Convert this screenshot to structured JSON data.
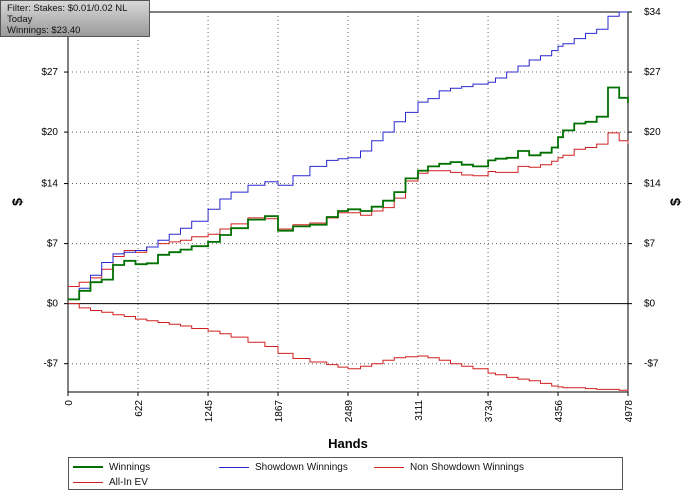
{
  "filter_box": {
    "line1": "Filter: Stakes: $0.01/0.02 NL",
    "line2": "Today",
    "line3": "Winnings: $23.40"
  },
  "chart_data": {
    "type": "line",
    "title": "",
    "xlabel": "Hands",
    "ylabel": "$",
    "ylabel_right": "$",
    "xlim": [
      0,
      4978
    ],
    "ylim": [
      -10.3,
      34
    ],
    "x_ticks": [
      0,
      622,
      1245,
      1867,
      2489,
      3111,
      3734,
      4356,
      4978
    ],
    "y_ticks": [
      -7,
      0,
      7,
      14,
      20,
      27
    ],
    "y_tick_labels": [
      "-$7",
      "$0",
      "$7",
      "$14",
      "$20",
      "$27"
    ],
    "right_axis_ticks": [
      -7,
      0,
      7,
      14,
      20,
      27,
      34
    ],
    "right_axis_tick_labels": [
      "-$7",
      "$0",
      "$7",
      "$14",
      "$20",
      "$27",
      "$34"
    ],
    "grid": true,
    "legend_position": "bottom",
    "series": [
      {
        "name": "Winnings",
        "color": "#007000",
        "x": [
          0,
          100,
          200,
          300,
          400,
          500,
          600,
          700,
          800,
          900,
          1000,
          1100,
          1245,
          1350,
          1450,
          1600,
          1750,
          1867,
          2000,
          2150,
          2300,
          2400,
          2489,
          2600,
          2700,
          2800,
          2900,
          3000,
          3111,
          3200,
          3300,
          3400,
          3500,
          3600,
          3734,
          3800,
          3900,
          4000,
          4100,
          4200,
          4300,
          4356,
          4400,
          4500,
          4600,
          4700,
          4800,
          4900,
          4978
        ],
        "y": [
          0.5,
          1.5,
          2.5,
          2.8,
          4.5,
          5.0,
          4.6,
          4.7,
          5.7,
          6.0,
          6.3,
          6.7,
          7.2,
          8.0,
          8.8,
          9.8,
          10.2,
          8.5,
          9.0,
          9.2,
          10.1,
          10.8,
          11.0,
          10.8,
          11.3,
          12.0,
          13.0,
          14.6,
          15.5,
          16.0,
          16.3,
          16.5,
          16.2,
          16.0,
          16.7,
          16.9,
          17.0,
          17.8,
          17.3,
          17.6,
          18.2,
          19.4,
          20.2,
          21.0,
          21.2,
          21.8,
          25.2,
          24.0,
          23.4
        ]
      },
      {
        "name": "Showdown Winnings",
        "color": "#2828d0",
        "x": [
          0,
          100,
          200,
          300,
          400,
          500,
          600,
          700,
          800,
          900,
          1000,
          1100,
          1245,
          1350,
          1450,
          1600,
          1750,
          1867,
          2000,
          2150,
          2300,
          2400,
          2489,
          2600,
          2700,
          2800,
          2900,
          3000,
          3111,
          3200,
          3300,
          3400,
          3500,
          3600,
          3734,
          3800,
          3900,
          4000,
          4100,
          4200,
          4300,
          4356,
          4400,
          4500,
          4600,
          4700,
          4800,
          4900,
          4978
        ],
        "y": [
          0.5,
          1.8,
          3.3,
          4.8,
          5.8,
          6.0,
          6.2,
          6.6,
          7.4,
          8.1,
          8.8,
          9.6,
          11.0,
          12.2,
          13.0,
          13.8,
          14.2,
          13.8,
          14.9,
          16.0,
          16.7,
          16.9,
          17.0,
          17.8,
          19.0,
          20.0,
          21.2,
          22.3,
          23.5,
          23.9,
          24.8,
          25.1,
          25.3,
          25.6,
          25.8,
          26.3,
          27.0,
          27.7,
          28.4,
          28.9,
          29.5,
          30.0,
          30.3,
          30.9,
          31.5,
          32.0,
          33.5,
          34.0,
          34.0
        ]
      },
      {
        "name": "Non Showdown Winnings",
        "color": "#d02020",
        "x": [
          0,
          100,
          200,
          300,
          400,
          500,
          600,
          700,
          800,
          900,
          1000,
          1100,
          1245,
          1350,
          1450,
          1600,
          1750,
          1867,
          2000,
          2150,
          2300,
          2400,
          2489,
          2600,
          2700,
          2800,
          2900,
          3000,
          3111,
          3200,
          3300,
          3400,
          3500,
          3600,
          3734,
          3800,
          3900,
          4000,
          4100,
          4200,
          4300,
          4356,
          4400,
          4500,
          4600,
          4700,
          4800,
          4900,
          4978
        ],
        "y": [
          0,
          -0.5,
          -0.8,
          -1.0,
          -1.3,
          -1.5,
          -1.8,
          -2.0,
          -2.2,
          -2.4,
          -2.6,
          -2.9,
          -3.2,
          -3.5,
          -3.9,
          -4.5,
          -5.0,
          -5.8,
          -6.4,
          -6.8,
          -7.1,
          -7.4,
          -7.6,
          -7.3,
          -7.0,
          -6.6,
          -6.3,
          -6.2,
          -6.1,
          -6.3,
          -6.6,
          -7.0,
          -7.3,
          -7.6,
          -8.1,
          -8.3,
          -8.6,
          -8.8,
          -9.0,
          -9.3,
          -9.6,
          -9.7,
          -9.8,
          -9.8,
          -9.9,
          -10.0,
          -10.0,
          -10.1,
          -10.2
        ]
      },
      {
        "name": "All-In EV",
        "color": "#d02020",
        "x": [
          0,
          100,
          200,
          300,
          400,
          500,
          600,
          700,
          800,
          900,
          1000,
          1100,
          1245,
          1350,
          1450,
          1600,
          1750,
          1867,
          2000,
          2150,
          2300,
          2400,
          2489,
          2600,
          2700,
          2800,
          2900,
          3000,
          3111,
          3200,
          3300,
          3400,
          3500,
          3600,
          3734,
          3800,
          3900,
          4000,
          4100,
          4200,
          4300,
          4356,
          4400,
          4500,
          4600,
          4700,
          4800,
          4900,
          4978
        ],
        "y": [
          2.0,
          2.5,
          3.0,
          4.0,
          5.5,
          6.2,
          6.0,
          6.6,
          7.0,
          7.2,
          7.4,
          7.8,
          8.1,
          8.7,
          9.3,
          10.0,
          9.9,
          8.7,
          9.2,
          9.4,
          10.0,
          10.6,
          10.6,
          10.3,
          10.8,
          11.2,
          12.3,
          14.3,
          15.2,
          15.5,
          15.5,
          15.3,
          15.0,
          14.9,
          15.4,
          15.3,
          15.3,
          16.0,
          15.9,
          16.2,
          16.6,
          17.0,
          17.3,
          18.0,
          18.2,
          18.6,
          19.9,
          19.0,
          18.6
        ]
      }
    ]
  }
}
